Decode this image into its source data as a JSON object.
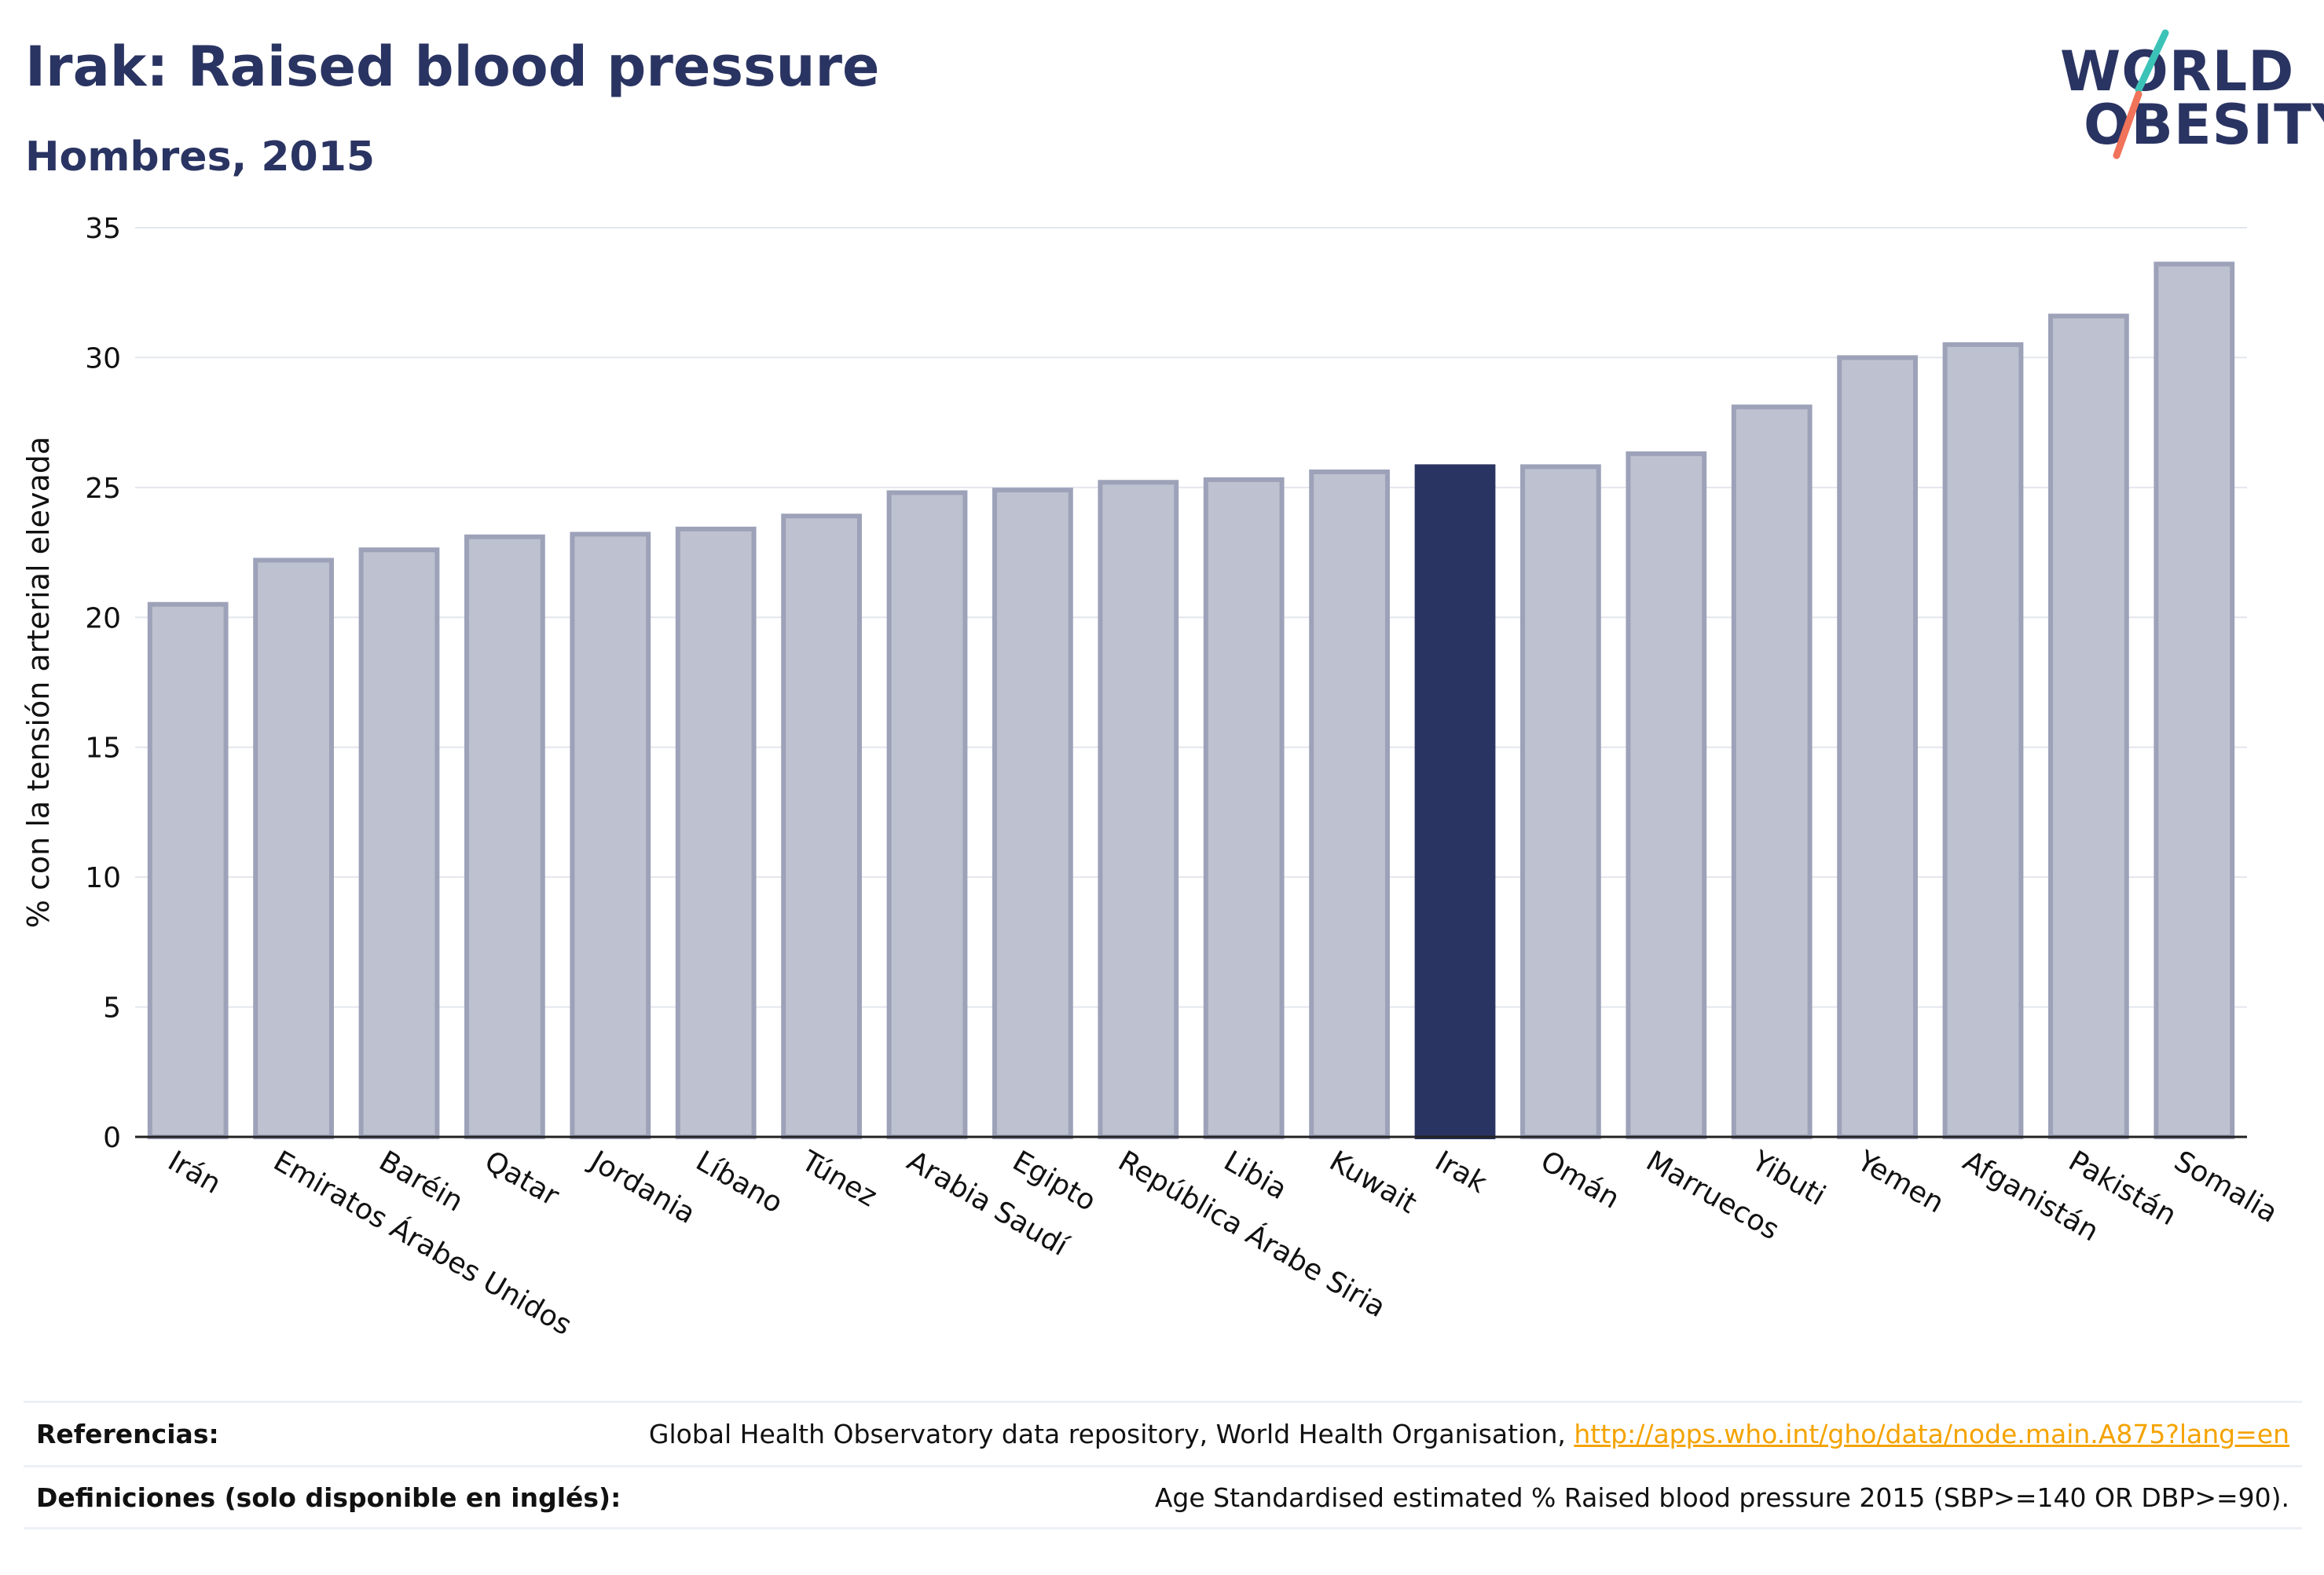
{
  "header": {
    "title": "Irak: Raised blood pressure",
    "subtitle": "Hombres, 2015"
  },
  "logo": {
    "line1": "WORLD",
    "line2": "OBESITY",
    "accent_colors": [
      "#3cc3b8",
      "#f0735a"
    ]
  },
  "chart_data": {
    "type": "bar",
    "title": "Irak: Raised blood pressure",
    "subtitle": "Hombres, 2015",
    "ylabel": "% con la tensión arterial elevada",
    "xlabel": "",
    "ylim": [
      0,
      35
    ],
    "yticks": [
      0,
      5,
      10,
      15,
      20,
      25,
      30,
      35
    ],
    "grid": true,
    "highlight": "Irak",
    "colors": {
      "bar": "#bec1cf",
      "bar_border": "#9da2b9",
      "highlight": "#2a3462"
    },
    "categories": [
      "Irán",
      "Emiratos Árabes Unidos",
      "Baréin",
      "Qatar",
      "Jordania",
      "Líbano",
      "Túnez",
      "Arabia Saudí",
      "Egipto",
      "República Árabe Siria",
      "Libia",
      "Kuwait",
      "Irak",
      "Omán",
      "Marruecos",
      "Yibuti",
      "Yemen",
      "Afganistán",
      "Pakistán",
      "Somalia"
    ],
    "values": [
      20.5,
      22.2,
      22.6,
      23.1,
      23.2,
      23.4,
      23.9,
      24.8,
      24.9,
      25.2,
      25.3,
      25.6,
      25.8,
      25.8,
      26.3,
      28.1,
      30.0,
      30.5,
      31.6,
      33.6
    ]
  },
  "footer": {
    "references_label": "Referencias:",
    "references_text": "Global Health Observatory data repository, World Health Organisation, ",
    "references_link": "http://apps.who.int/gho/data/node.main.A875?lang=en",
    "definitions_label": "Definiciones (solo disponible en inglés):",
    "definitions_text": "Age Standardised estimated % Raised blood pressure 2015 (SBP>=140 OR DBP>=90)."
  }
}
